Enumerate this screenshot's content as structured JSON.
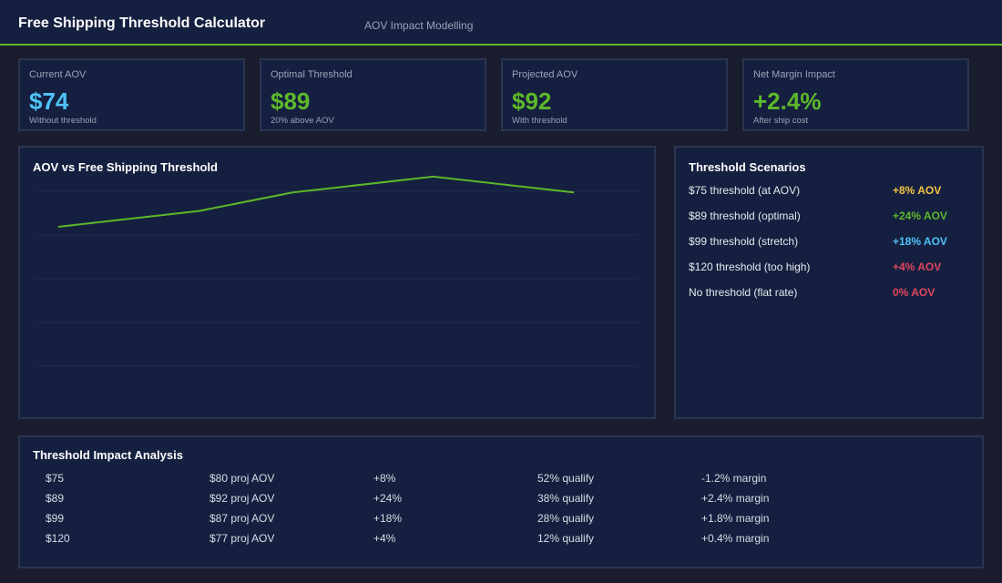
{
  "header": {
    "title": "Free Shipping Threshold Calculator",
    "subtitle": "AOV Impact Modelling"
  },
  "cards": [
    {
      "label": "Current AOV",
      "value": "$74",
      "note": "Without threshold",
      "color": "#4fc3f7"
    },
    {
      "label": "Optimal Threshold",
      "value": "$89",
      "note": "20% above AOV",
      "color": "#5db82a"
    },
    {
      "label": "Projected AOV",
      "value": "$92",
      "note": "With threshold",
      "color": "#5db82a"
    },
    {
      "label": "Net Margin Impact",
      "value": "+2.4%",
      "note": "After ship cost",
      "color": "#5db82a"
    }
  ],
  "chart_data": {
    "type": "line",
    "title": "AOV vs Free Shipping Threshold",
    "x": [
      0,
      3,
      5,
      8,
      11
    ],
    "xlim": [
      0,
      11
    ],
    "series": [
      {
        "color": "#5db82a",
        "values": [
          70,
          76,
          83,
          89,
          83
        ]
      }
    ],
    "ylim": [
      0,
      100
    ]
  },
  "scenarios": {
    "title": "Threshold Scenarios",
    "items": [
      {
        "label": "$75 threshold (at AOV)",
        "value": "+8% AOV",
        "color": "#f6c343"
      },
      {
        "label": "$89 threshold (optimal)",
        "value": "+24% AOV",
        "color": "#5db82a"
      },
      {
        "label": "$99 threshold (stretch)",
        "value": "+18% AOV",
        "color": "#4fc3f7"
      },
      {
        "label": "$120 threshold (too high)",
        "value": "+4% AOV",
        "color": "#e0455e"
      },
      {
        "label": "No threshold (flat rate)",
        "value": "0% AOV",
        "color": "#e0455e"
      }
    ]
  },
  "table": {
    "title": "Threshold Impact Analysis",
    "rows": [
      [
        "$75",
        "$80 proj AOV",
        "+8%",
        "52% qualify",
        "-1.2% margin"
      ],
      [
        "$89",
        "$92 proj AOV",
        "+24%",
        "38% qualify",
        "+2.4% margin"
      ],
      [
        "$99",
        "$87 proj AOV",
        "+18%",
        "28% qualify",
        "+1.8% margin"
      ],
      [
        "$120",
        "$77 proj AOV",
        "+4%",
        "12% qualify",
        "+0.4% margin"
      ]
    ]
  }
}
